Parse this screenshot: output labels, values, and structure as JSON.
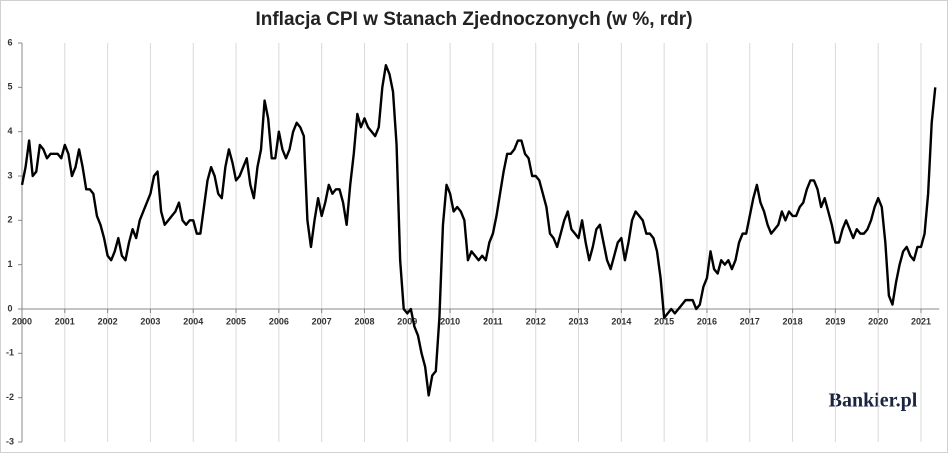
{
  "chart_data": {
    "type": "line",
    "title": "Inflacja CPI w Stanach Zjednoczonych (w %, rdr)",
    "watermark": "Bankier.pl",
    "color": "#000000",
    "grid": "x",
    "ylim": [
      -3,
      6
    ],
    "yticks": [
      -3,
      -2,
      -1,
      0,
      1,
      2,
      3,
      4,
      5,
      6
    ],
    "categories": [
      "2000",
      null,
      null,
      null,
      null,
      null,
      null,
      null,
      null,
      null,
      null,
      null,
      "2001",
      null,
      null,
      null,
      null,
      null,
      null,
      null,
      null,
      null,
      null,
      null,
      "2002",
      null,
      null,
      null,
      null,
      null,
      null,
      null,
      null,
      null,
      null,
      null,
      "2003",
      null,
      null,
      null,
      null,
      null,
      null,
      null,
      null,
      null,
      null,
      null,
      "2004",
      null,
      null,
      null,
      null,
      null,
      null,
      null,
      null,
      null,
      null,
      null,
      "2005",
      null,
      null,
      null,
      null,
      null,
      null,
      null,
      null,
      null,
      null,
      null,
      "2006",
      null,
      null,
      null,
      null,
      null,
      null,
      null,
      null,
      null,
      null,
      null,
      "2007",
      null,
      null,
      null,
      null,
      null,
      null,
      null,
      null,
      null,
      null,
      null,
      "2008",
      null,
      null,
      null,
      null,
      null,
      null,
      null,
      null,
      null,
      null,
      null,
      "2009",
      null,
      null,
      null,
      null,
      null,
      null,
      null,
      null,
      null,
      null,
      null,
      "2010",
      null,
      null,
      null,
      null,
      null,
      null,
      null,
      null,
      null,
      null,
      null,
      "2011",
      null,
      null,
      null,
      null,
      null,
      null,
      null,
      null,
      null,
      null,
      null,
      "2012",
      null,
      null,
      null,
      null,
      null,
      null,
      null,
      null,
      null,
      null,
      null,
      "2013",
      null,
      null,
      null,
      null,
      null,
      null,
      null,
      null,
      null,
      null,
      null,
      "2014",
      null,
      null,
      null,
      null,
      null,
      null,
      null,
      null,
      null,
      null,
      null,
      "2015",
      null,
      null,
      null,
      null,
      null,
      null,
      null,
      null,
      null,
      null,
      null,
      "2016",
      null,
      null,
      null,
      null,
      null,
      null,
      null,
      null,
      null,
      null,
      null,
      "2017",
      null,
      null,
      null,
      null,
      null,
      null,
      null,
      null,
      null,
      null,
      null,
      "2018",
      null,
      null,
      null,
      null,
      null,
      null,
      null,
      null,
      null,
      null,
      null,
      "2019",
      null,
      null,
      null,
      null,
      null,
      null,
      null,
      null,
      null,
      null,
      null,
      "2020",
      null,
      null,
      null,
      null,
      null,
      null,
      null,
      null,
      null,
      null,
      null,
      "2021",
      null,
      null,
      null,
      null
    ],
    "values": [
      2.8,
      3.2,
      3.8,
      3.0,
      3.1,
      3.7,
      3.6,
      3.4,
      3.5,
      3.5,
      3.5,
      3.4,
      3.7,
      3.5,
      3.0,
      3.2,
      3.6,
      3.2,
      2.7,
      2.7,
      2.6,
      2.1,
      1.9,
      1.6,
      1.2,
      1.1,
      1.3,
      1.6,
      1.2,
      1.1,
      1.5,
      1.8,
      1.6,
      2.0,
      2.2,
      2.4,
      2.6,
      3.0,
      3.1,
      2.2,
      1.9,
      2.0,
      2.1,
      2.2,
      2.4,
      2.0,
      1.9,
      2.0,
      2.0,
      1.7,
      1.7,
      2.3,
      2.9,
      3.2,
      3.0,
      2.6,
      2.5,
      3.2,
      3.6,
      3.3,
      2.9,
      3.0,
      3.2,
      3.4,
      2.8,
      2.5,
      3.2,
      3.6,
      4.7,
      4.3,
      3.4,
      3.4,
      4.0,
      3.6,
      3.4,
      3.6,
      4.0,
      4.2,
      4.1,
      3.9,
      2.0,
      1.4,
      2.0,
      2.5,
      2.1,
      2.4,
      2.8,
      2.6,
      2.7,
      2.7,
      2.4,
      1.9,
      2.8,
      3.5,
      4.4,
      4.1,
      4.3,
      4.1,
      4.0,
      3.9,
      4.1,
      5.0,
      5.5,
      5.3,
      4.9,
      3.7,
      1.1,
      0.0,
      -0.1,
      0.0,
      -0.4,
      -0.6,
      -1.0,
      -1.3,
      -1.95,
      -1.5,
      -1.4,
      -0.2,
      1.9,
      2.8,
      2.6,
      2.2,
      2.3,
      2.2,
      2.0,
      1.1,
      1.3,
      1.2,
      1.1,
      1.2,
      1.1,
      1.5,
      1.7,
      2.1,
      2.6,
      3.1,
      3.5,
      3.5,
      3.6,
      3.8,
      3.8,
      3.5,
      3.4,
      3.0,
      3.0,
      2.9,
      2.6,
      2.3,
      1.7,
      1.6,
      1.4,
      1.7,
      2.0,
      2.2,
      1.8,
      1.7,
      1.6,
      2.0,
      1.5,
      1.1,
      1.4,
      1.8,
      1.9,
      1.5,
      1.1,
      0.9,
      1.2,
      1.5,
      1.6,
      1.1,
      1.5,
      2.0,
      2.2,
      2.1,
      2.0,
      1.7,
      1.7,
      1.6,
      1.3,
      0.7,
      -0.2,
      -0.1,
      0.0,
      -0.1,
      0.0,
      0.1,
      0.2,
      0.2,
      0.2,
      0.0,
      0.1,
      0.5,
      0.7,
      1.3,
      0.9,
      0.8,
      1.1,
      1.0,
      1.1,
      0.9,
      1.1,
      1.5,
      1.7,
      1.7,
      2.1,
      2.5,
      2.8,
      2.4,
      2.2,
      1.9,
      1.7,
      1.8,
      1.9,
      2.2,
      2.0,
      2.2,
      2.1,
      2.1,
      2.3,
      2.4,
      2.7,
      2.9,
      2.9,
      2.7,
      2.3,
      2.5,
      2.2,
      1.9,
      1.5,
      1.5,
      1.8,
      2.0,
      1.8,
      1.6,
      1.8,
      1.7,
      1.7,
      1.8,
      2.0,
      2.3,
      2.5,
      2.3,
      1.5,
      0.3,
      0.1,
      0.6,
      1.0,
      1.3,
      1.4,
      1.2,
      1.1,
      1.4,
      1.4,
      1.7,
      2.6,
      4.2,
      5.0
    ]
  }
}
